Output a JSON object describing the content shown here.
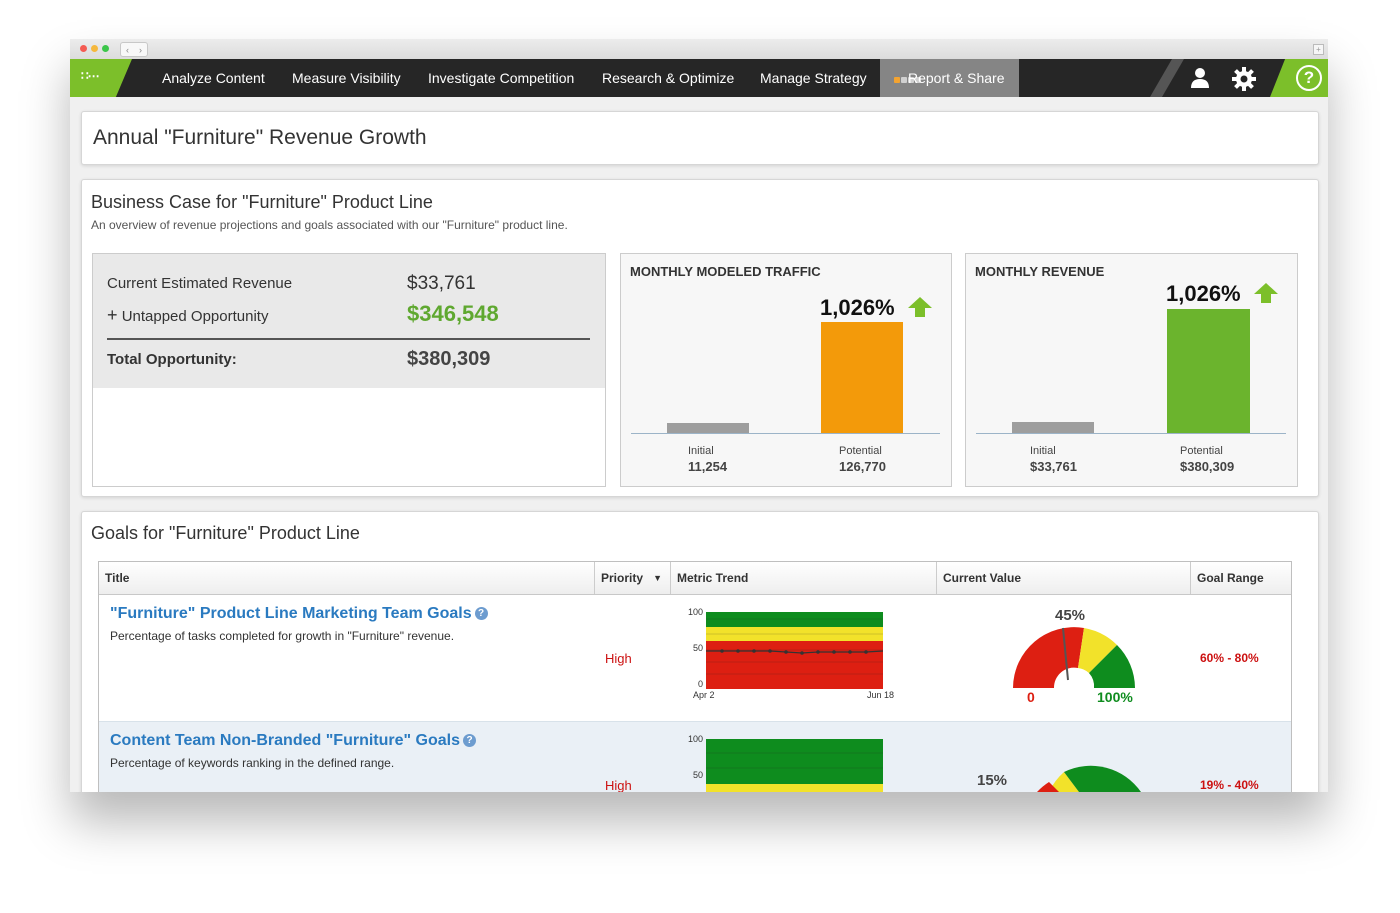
{
  "nav": {
    "items": [
      "Analyze Content",
      "Measure Visibility",
      "Investigate Competition",
      "Research & Optimize",
      "Manage Strategy"
    ],
    "active": "Report & Share"
  },
  "page": {
    "title": "Annual \"Furniture\" Revenue Growth"
  },
  "business_case": {
    "title": "Business Case for \"Furniture\" Product Line",
    "subtitle": "An overview of revenue projections and goals associated with our \"Furniture\" product line.",
    "current_label": "Current Estimated Revenue",
    "current_value": "$33,761",
    "untapped_label": "Untapped Opportunity",
    "untapped_value": "$346,548",
    "total_label": "Total Opportunity:",
    "total_value": "$380,309"
  },
  "traffic_chart": {
    "title": "MONTHLY MODELED TRAFFIC",
    "pct": "1,026%",
    "initial_label": "Initial",
    "initial_value": "11,254",
    "potential_label": "Potential",
    "potential_value": "126,770"
  },
  "revenue_chart": {
    "title": "MONTHLY REVENUE",
    "pct": "1,026%",
    "initial_label": "Initial",
    "initial_value": "$33,761",
    "potential_label": "Potential",
    "potential_value": "$380,309"
  },
  "goals": {
    "title": "Goals for \"Furniture\" Product Line",
    "columns": [
      "Title",
      "Priority",
      "Metric Trend",
      "Current Value",
      "Goal Range"
    ],
    "rows": [
      {
        "title": "\"Furniture\" Product Line Marketing Team Goals",
        "desc": "Percentage of tasks completed for growth in \"Furniture\" revenue.",
        "priority": "High",
        "trend_ticks": [
          "100",
          "50",
          "0"
        ],
        "trend_start": "Apr 2",
        "trend_end": "Jun 18",
        "gauge_value": "45%",
        "gauge_min": "0",
        "gauge_max": "100%",
        "range": "60% - 80%"
      },
      {
        "title": "Content Team Non-Branded \"Furniture\" Goals",
        "desc": "Percentage of keywords ranking in the defined range.",
        "priority": "High",
        "trend_ticks": [
          "100",
          "50"
        ],
        "gauge_value": "15%",
        "range": "19% - 40%"
      }
    ]
  },
  "chart_data": [
    {
      "type": "bar",
      "title": "MONTHLY MODELED TRAFFIC",
      "categories": [
        "Initial",
        "Potential"
      ],
      "values": [
        11254,
        126770
      ],
      "colors": [
        "#9e9e9e",
        "#f39a0a"
      ]
    },
    {
      "type": "bar",
      "title": "MONTHLY REVENUE",
      "categories": [
        "Initial",
        "Potential"
      ],
      "values": [
        33761,
        380309
      ],
      "colors": [
        "#9e9e9e",
        "#6bb42d"
      ]
    }
  ],
  "colors": {
    "brand_green": "#7cbf2a",
    "nav_bg": "#262626",
    "link_blue": "#2a7ac0",
    "alert_red": "#cc1111"
  }
}
